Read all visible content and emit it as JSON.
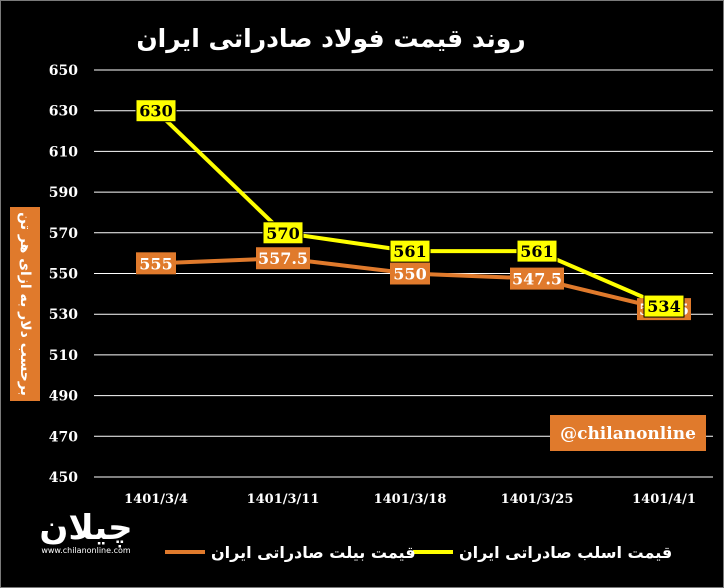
{
  "chart_data": {
    "type": "line",
    "title": "روند قیمت فولاد صادراتی ایران",
    "ylabel": "برحسب دلار به ازای هر تن",
    "categories": [
      "1401/3/4",
      "1401/3/11",
      "1401/3/18",
      "1401/3/25",
      "1401/4/1"
    ],
    "ylim": [
      450,
      650
    ],
    "yticks": [
      450,
      470,
      490,
      510,
      530,
      550,
      570,
      590,
      610,
      630,
      650
    ],
    "grid": true,
    "legend_position": "bottom",
    "series": [
      {
        "name": "قیمت اسلب صادراتی ایران",
        "color": "#ffff00",
        "values": [
          630,
          570,
          561,
          561,
          534
        ],
        "labels": [
          "630",
          "570",
          "561",
          "561",
          "534"
        ]
      },
      {
        "name": "قیمت بیلت صادراتی ایران",
        "color": "#e07a2c",
        "values": [
          555,
          557.5,
          550,
          547.5,
          532.5
        ],
        "labels": [
          "555",
          "557.5",
          "550",
          "547.5",
          "532.5"
        ]
      }
    ]
  },
  "watermark": {
    "handle": "@chilanonline",
    "logo_text": "چیلان",
    "logo_url": "www.chilanonline.com"
  },
  "colors": {
    "background": "#000000",
    "slab": "#ffff00",
    "billet": "#e07a2c",
    "badge": "#e07a2c",
    "gridline": "#ffffff"
  }
}
